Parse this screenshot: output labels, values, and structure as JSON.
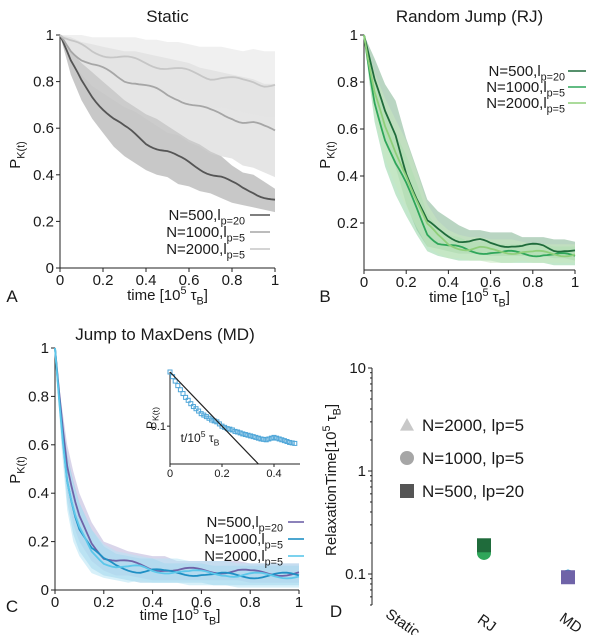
{
  "chart_data": [
    {
      "id": "A",
      "type": "line",
      "panel_letter": "A",
      "title": "Static",
      "xlabel": "time [10^5 τ_B]",
      "ylabel": "P_K(t)",
      "xlim": [
        0,
        1
      ],
      "ylim": [
        0,
        1
      ],
      "xticks": [
        "0",
        "0.2",
        "0.4",
        "0.6",
        "0.8",
        "1"
      ],
      "yticks": [
        "0",
        "0.2",
        "0.4",
        "0.6",
        "0.8",
        "1"
      ],
      "legend_position": "bottom-left",
      "series": [
        {
          "name": "N=500,l_p=20",
          "color": "#555555",
          "band": "#9a9a9a",
          "x": [
            0,
            0.05,
            0.1,
            0.15,
            0.2,
            0.25,
            0.3,
            0.35,
            0.4,
            0.45,
            0.5,
            0.55,
            0.6,
            0.65,
            0.7,
            0.75,
            0.8,
            0.85,
            0.9,
            0.95,
            1.0
          ],
          "y": [
            1.0,
            0.88,
            0.8,
            0.74,
            0.69,
            0.64,
            0.6,
            0.57,
            0.54,
            0.52,
            0.5,
            0.47,
            0.45,
            0.43,
            0.41,
            0.39,
            0.36,
            0.34,
            0.33,
            0.31,
            0.29
          ],
          "spread": [
            0,
            0.05,
            0.08,
            0.1,
            0.11,
            0.12,
            0.12,
            0.12,
            0.12,
            0.12,
            0.11,
            0.11,
            0.1,
            0.1,
            0.09,
            0.09,
            0.08,
            0.07,
            0.07,
            0.06,
            0.05
          ]
        },
        {
          "name": "N=1000,l_p=5",
          "color": "#a6a6a6",
          "band": "#cfcfcf",
          "x": [
            0,
            0.05,
            0.1,
            0.15,
            0.2,
            0.25,
            0.3,
            0.35,
            0.4,
            0.45,
            0.5,
            0.55,
            0.6,
            0.65,
            0.7,
            0.75,
            0.8,
            0.85,
            0.9,
            0.95,
            1.0
          ],
          "y": [
            1.0,
            0.94,
            0.9,
            0.87,
            0.85,
            0.83,
            0.81,
            0.8,
            0.78,
            0.76,
            0.74,
            0.73,
            0.71,
            0.69,
            0.67,
            0.66,
            0.65,
            0.63,
            0.62,
            0.6,
            0.59
          ],
          "spread": [
            0,
            0.05,
            0.07,
            0.09,
            0.1,
            0.11,
            0.12,
            0.13,
            0.14,
            0.15,
            0.16,
            0.16,
            0.17,
            0.17,
            0.18,
            0.18,
            0.18,
            0.19,
            0.19,
            0.19,
            0.2
          ]
        },
        {
          "name": "N=2000,l_p=5",
          "color": "#c6c6c6",
          "band": "#e3e3e3",
          "x": [
            0,
            0.05,
            0.1,
            0.15,
            0.2,
            0.25,
            0.3,
            0.35,
            0.4,
            0.45,
            0.5,
            0.55,
            0.6,
            0.65,
            0.7,
            0.75,
            0.8,
            0.85,
            0.9,
            0.95,
            1.0
          ],
          "y": [
            1.0,
            0.97,
            0.95,
            0.93,
            0.92,
            0.91,
            0.9,
            0.89,
            0.88,
            0.87,
            0.86,
            0.85,
            0.84,
            0.83,
            0.82,
            0.82,
            0.81,
            0.8,
            0.8,
            0.79,
            0.79
          ],
          "spread": [
            0,
            0.03,
            0.05,
            0.06,
            0.07,
            0.08,
            0.09,
            0.1,
            0.1,
            0.11,
            0.11,
            0.12,
            0.12,
            0.12,
            0.13,
            0.13,
            0.13,
            0.13,
            0.14,
            0.14,
            0.14
          ]
        }
      ]
    },
    {
      "id": "B",
      "type": "line",
      "panel_letter": "B",
      "title": "Random Jump (RJ)",
      "xlabel": "time [10^5 τ_B]",
      "ylabel": "P_K(t)",
      "xlim": [
        0,
        1
      ],
      "ylim": [
        0,
        1
      ],
      "xticks": [
        "0",
        "0.2",
        "0.4",
        "0.6",
        "0.8",
        "1"
      ],
      "yticks": [
        "0.2",
        "0.4",
        "0.6",
        "0.8",
        "1"
      ],
      "legend_position": "top-right",
      "series": [
        {
          "name": "N=500,l_p=20",
          "color": "#1f6b3b",
          "band": "#7fb38f",
          "x": [
            0,
            0.025,
            0.05,
            0.1,
            0.15,
            0.2,
            0.25,
            0.3,
            0.35,
            0.4,
            0.45,
            0.5,
            0.55,
            0.6,
            0.65,
            0.7,
            0.75,
            0.8,
            0.85,
            0.9,
            0.95,
            1.0
          ],
          "y": [
            1.0,
            0.9,
            0.8,
            0.67,
            0.58,
            0.42,
            0.3,
            0.2,
            0.17,
            0.15,
            0.13,
            0.12,
            0.12,
            0.11,
            0.11,
            0.11,
            0.1,
            0.1,
            0.1,
            0.09,
            0.09,
            0.08
          ],
          "spread": [
            0,
            0.05,
            0.1,
            0.12,
            0.14,
            0.14,
            0.13,
            0.1,
            0.08,
            0.07,
            0.06,
            0.05,
            0.05,
            0.05,
            0.05,
            0.05,
            0.04,
            0.04,
            0.04,
            0.04,
            0.04,
            0.04
          ]
        },
        {
          "name": "N=1000,l_p=5",
          "color": "#2fa65a",
          "band": "#8fd3a3",
          "x": [
            0,
            0.025,
            0.05,
            0.1,
            0.15,
            0.2,
            0.25,
            0.3,
            0.35,
            0.4,
            0.45,
            0.5,
            0.55,
            0.6,
            0.65,
            0.7,
            0.75,
            0.8,
            0.85,
            0.9,
            0.95,
            1.0
          ],
          "y": [
            1.0,
            0.85,
            0.72,
            0.56,
            0.45,
            0.36,
            0.26,
            0.16,
            0.12,
            0.1,
            0.09,
            0.08,
            0.08,
            0.08,
            0.07,
            0.07,
            0.07,
            0.07,
            0.07,
            0.06,
            0.06,
            0.06
          ],
          "spread": [
            0,
            0.05,
            0.09,
            0.12,
            0.13,
            0.13,
            0.11,
            0.08,
            0.06,
            0.05,
            0.05,
            0.04,
            0.04,
            0.04,
            0.04,
            0.04,
            0.04,
            0.04,
            0.04,
            0.04,
            0.04,
            0.04
          ]
        },
        {
          "name": "N=2000,l_p=5",
          "color": "#8fcf7a",
          "band": "#c8e8bf",
          "x": [
            0,
            0.025,
            0.05,
            0.1,
            0.15,
            0.2,
            0.25,
            0.3,
            0.35,
            0.4,
            0.45,
            0.5,
            0.55,
            0.6,
            0.65,
            0.7,
            0.75,
            0.8,
            0.85,
            0.9,
            0.95,
            1.0
          ],
          "y": [
            1.0,
            0.87,
            0.75,
            0.6,
            0.5,
            0.41,
            0.3,
            0.19,
            0.14,
            0.11,
            0.1,
            0.09,
            0.09,
            0.08,
            0.08,
            0.08,
            0.08,
            0.07,
            0.07,
            0.07,
            0.07,
            0.07
          ],
          "spread": [
            0,
            0.05,
            0.09,
            0.13,
            0.14,
            0.14,
            0.12,
            0.09,
            0.07,
            0.06,
            0.05,
            0.05,
            0.05,
            0.05,
            0.05,
            0.05,
            0.04,
            0.04,
            0.04,
            0.04,
            0.04,
            0.04
          ]
        }
      ]
    },
    {
      "id": "C",
      "type": "line",
      "panel_letter": "C",
      "title": "Jump to MaxDens (MD)",
      "xlabel": "time [10^5 τ_B]",
      "ylabel": "P_K(t)",
      "xlim": [
        0,
        1
      ],
      "ylim": [
        0,
        1
      ],
      "xticks": [
        "0",
        "0.2",
        "0.4",
        "0.6",
        "0.8",
        "1"
      ],
      "yticks": [
        "0",
        "0.2",
        "0.4",
        "0.6",
        "0.8",
        "1"
      ],
      "legend_position": "bottom-right",
      "series": [
        {
          "name": "N=500,l_p=20",
          "color": "#6f63a8",
          "band": "#b9b2d9",
          "x": [
            0,
            0.025,
            0.05,
            0.075,
            0.1,
            0.15,
            0.2,
            0.25,
            0.3,
            0.35,
            0.4,
            0.45,
            0.5,
            0.55,
            0.6,
            0.65,
            0.7,
            0.75,
            0.8,
            0.85,
            0.9,
            0.95,
            1.0
          ],
          "y": [
            1.0,
            0.72,
            0.5,
            0.38,
            0.3,
            0.2,
            0.14,
            0.12,
            0.11,
            0.1,
            0.09,
            0.09,
            0.08,
            0.08,
            0.08,
            0.08,
            0.08,
            0.08,
            0.07,
            0.07,
            0.07,
            0.07,
            0.07
          ],
          "spread": [
            0,
            0.06,
            0.1,
            0.11,
            0.1,
            0.08,
            0.06,
            0.06,
            0.05,
            0.05,
            0.05,
            0.05,
            0.04,
            0.04,
            0.04,
            0.04,
            0.04,
            0.04,
            0.04,
            0.04,
            0.04,
            0.04,
            0.04
          ]
        },
        {
          "name": "N=1000,l_p=5",
          "color": "#1f8fc4",
          "band": "#8fcbe6",
          "x": [
            0,
            0.025,
            0.05,
            0.075,
            0.1,
            0.15,
            0.2,
            0.25,
            0.3,
            0.35,
            0.4,
            0.45,
            0.5,
            0.55,
            0.6,
            0.65,
            0.7,
            0.75,
            0.8,
            0.85,
            0.9,
            0.95,
            1.0
          ],
          "y": [
            1.0,
            0.7,
            0.46,
            0.34,
            0.26,
            0.17,
            0.12,
            0.1,
            0.09,
            0.08,
            0.08,
            0.07,
            0.07,
            0.07,
            0.07,
            0.06,
            0.06,
            0.06,
            0.06,
            0.06,
            0.06,
            0.06,
            0.06
          ],
          "spread": [
            0,
            0.06,
            0.1,
            0.11,
            0.1,
            0.08,
            0.06,
            0.05,
            0.05,
            0.05,
            0.05,
            0.04,
            0.04,
            0.04,
            0.04,
            0.04,
            0.04,
            0.04,
            0.04,
            0.04,
            0.04,
            0.04,
            0.04
          ]
        },
        {
          "name": "N=2000,l_p=5",
          "color": "#5cc7ea",
          "band": "#b7e4f4",
          "x": [
            0,
            0.025,
            0.05,
            0.075,
            0.1,
            0.15,
            0.2,
            0.25,
            0.3,
            0.35,
            0.4,
            0.45,
            0.5,
            0.55,
            0.6,
            0.65,
            0.7,
            0.75,
            0.8,
            0.85,
            0.9,
            0.95,
            1.0
          ],
          "y": [
            1.0,
            0.68,
            0.44,
            0.32,
            0.25,
            0.16,
            0.12,
            0.1,
            0.09,
            0.09,
            0.08,
            0.08,
            0.08,
            0.07,
            0.07,
            0.07,
            0.07,
            0.06,
            0.06,
            0.06,
            0.06,
            0.06,
            0.06
          ],
          "spread": [
            0,
            0.07,
            0.11,
            0.12,
            0.11,
            0.09,
            0.07,
            0.06,
            0.06,
            0.05,
            0.05,
            0.05,
            0.05,
            0.05,
            0.05,
            0.05,
            0.05,
            0.05,
            0.05,
            0.05,
            0.05,
            0.05,
            0.05
          ]
        }
      ]
    },
    {
      "id": "C_inset",
      "type": "scatter",
      "xlabel": "t/10^5 τ_B",
      "ylabel": "P_K(t)",
      "yscale": "log",
      "xlim": [
        0,
        0.5
      ],
      "ylim": [
        0.02,
        1
      ],
      "xticks": [
        "0",
        "0.2",
        "0.4"
      ],
      "yticks": [
        "0.1"
      ],
      "points": {
        "x": [
          0.0,
          0.01,
          0.02,
          0.03,
          0.04,
          0.05,
          0.06,
          0.07,
          0.08,
          0.09,
          0.1,
          0.11,
          0.12,
          0.13,
          0.14,
          0.15,
          0.16,
          0.17,
          0.18,
          0.19,
          0.2,
          0.21,
          0.22,
          0.23,
          0.24,
          0.25,
          0.26,
          0.27,
          0.28,
          0.29,
          0.3,
          0.31,
          0.32,
          0.33,
          0.34,
          0.35,
          0.36,
          0.37,
          0.38,
          0.39,
          0.4,
          0.41,
          0.42,
          0.43,
          0.44,
          0.45,
          0.46,
          0.47,
          0.48
        ],
        "y": [
          1.0,
          0.82,
          0.68,
          0.56,
          0.47,
          0.4,
          0.34,
          0.3,
          0.26,
          0.23,
          0.21,
          0.19,
          0.17,
          0.16,
          0.15,
          0.14,
          0.13,
          0.125,
          0.12,
          0.11,
          0.1,
          0.095,
          0.09,
          0.088,
          0.085,
          0.08,
          0.078,
          0.075,
          0.072,
          0.07,
          0.068,
          0.066,
          0.064,
          0.062,
          0.06,
          0.058,
          0.057,
          0.056,
          0.058,
          0.06,
          0.062,
          0.06,
          0.058,
          0.056,
          0.054,
          0.052,
          0.05,
          0.049,
          0.048
        ],
        "color": "#4fa6d8"
      },
      "fit_line": {
        "x": [
          0,
          0.34
        ],
        "y": [
          1.0,
          0.02
        ],
        "color": "#222222"
      }
    },
    {
      "id": "D",
      "type": "scatter",
      "panel_letter": "D",
      "xlabel": "",
      "ylabel": "RelaxationTime[10^5 τ_B]",
      "yscale": "log",
      "ylim": [
        0.05,
        10
      ],
      "yticks": [
        "0.1",
        "1",
        "10"
      ],
      "categories": [
        "Static",
        "RJ",
        "MD"
      ],
      "legend_position": "top-left",
      "series": [
        {
          "name": "N=2000, lp=5",
          "marker": "triangle",
          "legend_color": "#c8c8c8",
          "values": [
            null,
            0.185,
            0.096
          ],
          "colors": [
            "#c8c8c8",
            "#8fcf7a",
            "#5cc7ea"
          ]
        },
        {
          "name": "N=1000, lp=5",
          "marker": "circle",
          "legend_color": "#a6a6a6",
          "values": [
            null,
            0.16,
            0.094
          ],
          "colors": [
            "#a6a6a6",
            "#2fa65a",
            "#1f8fc4"
          ]
        },
        {
          "name": "N=500, lp=20",
          "marker": "square",
          "legend_color": "#555555",
          "values": [
            null,
            0.19,
            0.093
          ],
          "colors": [
            "#555555",
            "#1f6b3b",
            "#6f63a8"
          ]
        }
      ]
    }
  ]
}
